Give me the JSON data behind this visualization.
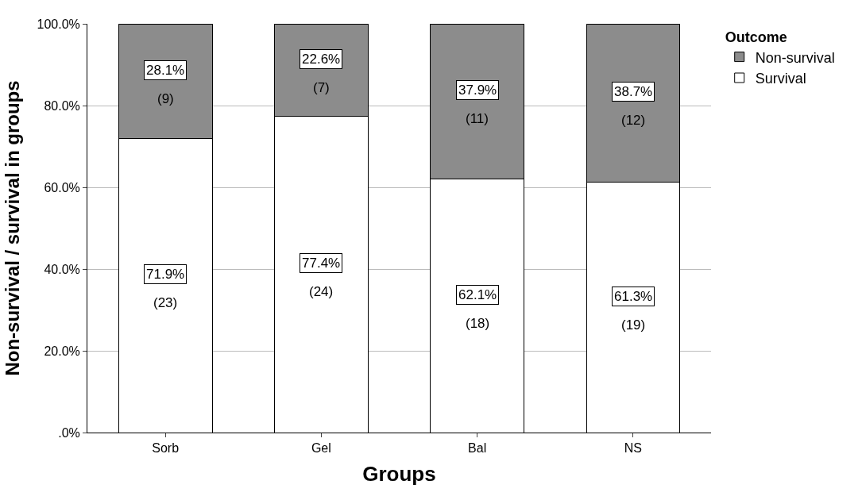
{
  "chart_data": {
    "type": "bar",
    "stacked": true,
    "xlabel": "Groups",
    "ylabel": "Non-survival / survival in groups",
    "legend_title": "Outcome",
    "categories": [
      "Sorb",
      "Gel",
      "Bal",
      "NS"
    ],
    "series": [
      {
        "name": "Survival",
        "color": "#ffffff",
        "values": [
          71.9,
          77.4,
          62.1,
          61.3
        ],
        "value_labels": [
          "71.9%\n(23)",
          "77.4%\n(24)",
          "62.1%\n(18)",
          "61.3%\n(19)"
        ]
      },
      {
        "name": "Non-survival",
        "color": "#8c8c8c",
        "values": [
          28.1,
          22.6,
          37.9,
          38.7
        ],
        "value_labels": [
          "28.1%\n(9)",
          "22.6%\n(7)",
          "37.9%\n(11)",
          "38.7%\n(12)"
        ]
      }
    ],
    "ylim": [
      0,
      100
    ],
    "yticks": [
      {
        "value": 0,
        "label": ".0%"
      },
      {
        "value": 20,
        "label": "20.0%"
      },
      {
        "value": 40,
        "label": "40.0%"
      },
      {
        "value": 60,
        "label": "60.0%"
      },
      {
        "value": 80,
        "label": "80.0%"
      },
      {
        "value": 100,
        "label": "100.0%"
      }
    ],
    "grid": "y",
    "legend": "top right"
  }
}
